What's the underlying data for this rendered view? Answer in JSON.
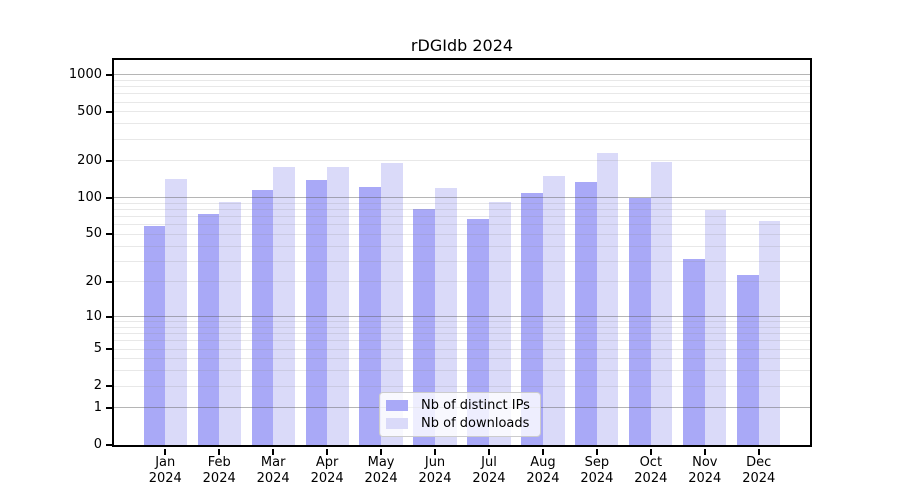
{
  "title": "rDGIdb 2024",
  "chart_data": {
    "type": "bar",
    "title": "rDGIdb 2024",
    "xlabel": "",
    "ylabel": "",
    "yscale": "log1p",
    "ylim": [
      0,
      1320
    ],
    "grid": true,
    "legend_position": "inside-bottom-center",
    "categories": [
      "Jan 2024",
      "Feb 2024",
      "Mar 2024",
      "Apr 2024",
      "May 2024",
      "Jun 2024",
      "Jul 2024",
      "Aug 2024",
      "Sep 2024",
      "Oct 2024",
      "Nov 2024",
      "Dec 2024"
    ],
    "series": [
      {
        "name": "Nb of distinct IPs",
        "color": "#a9a9f7",
        "values": [
          59,
          74,
          116,
          140,
          122,
          81,
          67,
          110,
          135,
          100,
          31,
          23
        ]
      },
      {
        "name": "Nb of downloads",
        "color": "#dadaf9",
        "values": [
          142,
          93,
          177,
          180,
          191,
          121,
          92,
          150,
          230,
          197,
          80,
          64
        ]
      }
    ],
    "y_tick_values": [
      0,
      1,
      2,
      5,
      10,
      20,
      50,
      100,
      200,
      500,
      1000
    ],
    "y_major_gridlines": [
      1,
      10,
      100,
      1000
    ],
    "y_minor_gridlines": [
      2,
      3,
      4,
      5,
      6,
      7,
      8,
      9,
      20,
      30,
      40,
      50,
      60,
      70,
      80,
      90,
      200,
      300,
      400,
      500,
      600,
      700,
      800,
      900
    ]
  }
}
